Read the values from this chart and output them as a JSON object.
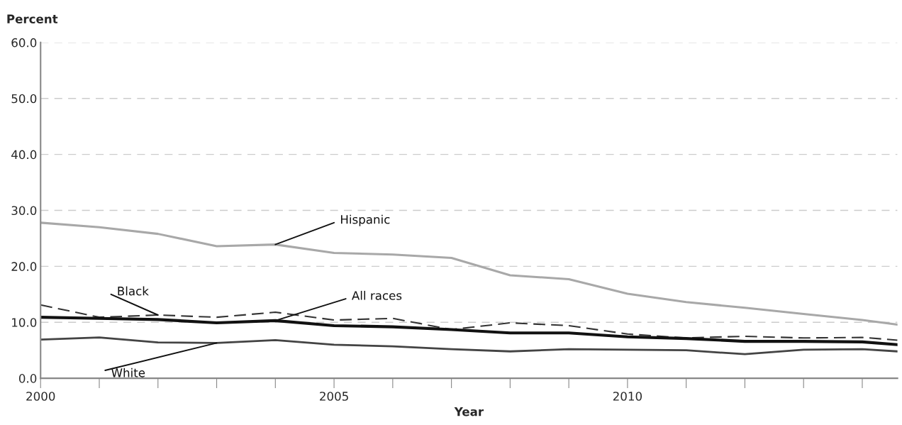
{
  "chart_data": {
    "type": "line",
    "ylabel": "Percent",
    "xlabel": "Year",
    "x": [
      2000,
      2001,
      2002,
      2003,
      2004,
      2005,
      2006,
      2007,
      2008,
      2009,
      2010,
      2011,
      2012,
      2013,
      2014,
      2014.6
    ],
    "xlim": [
      2000,
      2014.6
    ],
    "xticks": [
      {
        "value": 2000,
        "label": "2000"
      },
      {
        "value": 2001,
        "label": null
      },
      {
        "value": 2002,
        "label": null
      },
      {
        "value": 2003,
        "label": null
      },
      {
        "value": 2004,
        "label": null
      },
      {
        "value": 2005,
        "label": "2005"
      },
      {
        "value": 2006,
        "label": null
      },
      {
        "value": 2007,
        "label": null
      },
      {
        "value": 2008,
        "label": null
      },
      {
        "value": 2009,
        "label": null
      },
      {
        "value": 2010,
        "label": "2010"
      },
      {
        "value": 2011,
        "label": null
      },
      {
        "value": 2012,
        "label": null
      },
      {
        "value": 2013,
        "label": null
      },
      {
        "value": 2014,
        "label": null
      }
    ],
    "ylim": [
      0,
      60
    ],
    "yticks": [
      {
        "value": 0,
        "label": "0.0"
      },
      {
        "value": 10,
        "label": "10.0"
      },
      {
        "value": 20,
        "label": "20.0"
      },
      {
        "value": 30,
        "label": "30.0"
      },
      {
        "value": 40,
        "label": "40.0"
      },
      {
        "value": 50,
        "label": "50.0"
      },
      {
        "value": 60,
        "label": "60.0"
      }
    ],
    "grid": "y",
    "legend": false,
    "marker": "none",
    "series": [
      {
        "name": "Hispanic",
        "color": "#a8a8a8",
        "line_style": "solid",
        "values": [
          27.8,
          27.0,
          25.8,
          23.6,
          23.9,
          22.4,
          22.1,
          21.5,
          18.4,
          17.7,
          15.1,
          13.6,
          12.6,
          11.5,
          10.4,
          9.6
        ]
      },
      {
        "name": "Black",
        "color": "#333333",
        "line_style": "dashed",
        "values": [
          13.1,
          10.9,
          11.3,
          10.9,
          11.8,
          10.4,
          10.7,
          8.7,
          9.9,
          9.4,
          7.9,
          7.2,
          7.5,
          7.2,
          7.3,
          6.8
        ]
      },
      {
        "name": "All races",
        "color": "#111111",
        "line_style": "solid",
        "values": [
          10.9,
          10.7,
          10.5,
          9.9,
          10.3,
          9.4,
          9.2,
          8.7,
          8.1,
          8.1,
          7.4,
          7.1,
          6.6,
          6.6,
          6.5,
          6.0
        ]
      },
      {
        "name": "White",
        "color": "#444444",
        "line_style": "solid",
        "values": [
          6.9,
          7.3,
          6.4,
          6.3,
          6.8,
          6.0,
          5.7,
          5.2,
          4.8,
          5.2,
          5.1,
          5.0,
          4.3,
          5.1,
          5.2,
          4.8
        ]
      }
    ]
  }
}
